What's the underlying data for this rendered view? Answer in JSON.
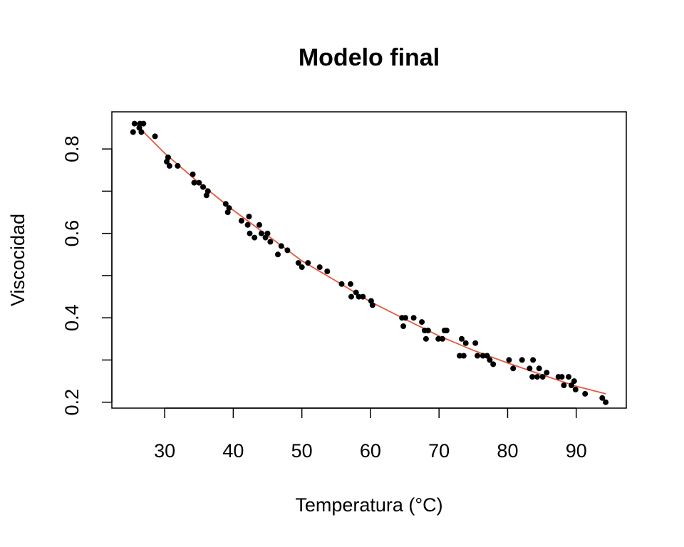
{
  "chart_data": {
    "type": "scatter",
    "title": "Modelo final",
    "xlabel": "Temperatura (°C)",
    "ylabel": "Viscocidad",
    "xlim": [
      22.3,
      97.3
    ],
    "ylim": [
      0.186,
      0.888
    ],
    "xticks": [
      30,
      40,
      50,
      60,
      70,
      80,
      90
    ],
    "yticks": [
      0.2,
      0.4,
      0.6,
      0.8
    ],
    "xtick_labels": [
      "30",
      "40",
      "50",
      "60",
      "70",
      "80",
      "90"
    ],
    "ytick_labels": [
      "0.2",
      "0.4",
      "0.6",
      "0.8"
    ],
    "grid": false,
    "legend": "none",
    "colors": {
      "points": "#000000",
      "fit_line": "#e8573c"
    },
    "points": [
      {
        "x": 25.4,
        "y": 0.84
      },
      {
        "x": 25.6,
        "y": 0.86
      },
      {
        "x": 26.3,
        "y": 0.85
      },
      {
        "x": 26.4,
        "y": 0.86
      },
      {
        "x": 26.6,
        "y": 0.84
      },
      {
        "x": 26.9,
        "y": 0.86
      },
      {
        "x": 28.6,
        "y": 0.83
      },
      {
        "x": 30.3,
        "y": 0.77
      },
      {
        "x": 30.5,
        "y": 0.78
      },
      {
        "x": 30.7,
        "y": 0.76
      },
      {
        "x": 31.9,
        "y": 0.76
      },
      {
        "x": 34.1,
        "y": 0.74
      },
      {
        "x": 34.3,
        "y": 0.72
      },
      {
        "x": 35.0,
        "y": 0.72
      },
      {
        "x": 35.6,
        "y": 0.71
      },
      {
        "x": 36.1,
        "y": 0.69
      },
      {
        "x": 36.3,
        "y": 0.7
      },
      {
        "x": 38.9,
        "y": 0.67
      },
      {
        "x": 39.2,
        "y": 0.65
      },
      {
        "x": 39.4,
        "y": 0.66
      },
      {
        "x": 41.2,
        "y": 0.63
      },
      {
        "x": 42.1,
        "y": 0.62
      },
      {
        "x": 42.3,
        "y": 0.64
      },
      {
        "x": 42.4,
        "y": 0.6
      },
      {
        "x": 43.1,
        "y": 0.59
      },
      {
        "x": 43.8,
        "y": 0.62
      },
      {
        "x": 44.1,
        "y": 0.6
      },
      {
        "x": 44.7,
        "y": 0.59
      },
      {
        "x": 45.0,
        "y": 0.6
      },
      {
        "x": 45.4,
        "y": 0.58
      },
      {
        "x": 46.5,
        "y": 0.55
      },
      {
        "x": 47.0,
        "y": 0.57
      },
      {
        "x": 47.9,
        "y": 0.56
      },
      {
        "x": 49.5,
        "y": 0.53
      },
      {
        "x": 50.0,
        "y": 0.52
      },
      {
        "x": 50.9,
        "y": 0.53
      },
      {
        "x": 52.6,
        "y": 0.52
      },
      {
        "x": 53.7,
        "y": 0.51
      },
      {
        "x": 55.8,
        "y": 0.48
      },
      {
        "x": 57.1,
        "y": 0.48
      },
      {
        "x": 57.2,
        "y": 0.45
      },
      {
        "x": 57.9,
        "y": 0.46
      },
      {
        "x": 58.3,
        "y": 0.45
      },
      {
        "x": 58.9,
        "y": 0.45
      },
      {
        "x": 60.1,
        "y": 0.44
      },
      {
        "x": 60.3,
        "y": 0.43
      },
      {
        "x": 64.6,
        "y": 0.4
      },
      {
        "x": 64.8,
        "y": 0.38
      },
      {
        "x": 65.1,
        "y": 0.4
      },
      {
        "x": 66.3,
        "y": 0.4
      },
      {
        "x": 67.5,
        "y": 0.39
      },
      {
        "x": 67.9,
        "y": 0.37
      },
      {
        "x": 68.1,
        "y": 0.35
      },
      {
        "x": 68.4,
        "y": 0.37
      },
      {
        "x": 69.9,
        "y": 0.35
      },
      {
        "x": 70.5,
        "y": 0.35
      },
      {
        "x": 70.8,
        "y": 0.37
      },
      {
        "x": 71.1,
        "y": 0.37
      },
      {
        "x": 73.0,
        "y": 0.31
      },
      {
        "x": 73.3,
        "y": 0.35
      },
      {
        "x": 73.6,
        "y": 0.31
      },
      {
        "x": 73.9,
        "y": 0.34
      },
      {
        "x": 75.3,
        "y": 0.34
      },
      {
        "x": 75.6,
        "y": 0.31
      },
      {
        "x": 76.4,
        "y": 0.31
      },
      {
        "x": 77.0,
        "y": 0.31
      },
      {
        "x": 77.4,
        "y": 0.3
      },
      {
        "x": 77.9,
        "y": 0.29
      },
      {
        "x": 80.2,
        "y": 0.3
      },
      {
        "x": 80.8,
        "y": 0.28
      },
      {
        "x": 82.1,
        "y": 0.3
      },
      {
        "x": 83.2,
        "y": 0.28
      },
      {
        "x": 83.6,
        "y": 0.26
      },
      {
        "x": 83.7,
        "y": 0.3
      },
      {
        "x": 84.3,
        "y": 0.26
      },
      {
        "x": 84.6,
        "y": 0.28
      },
      {
        "x": 85.1,
        "y": 0.26
      },
      {
        "x": 85.7,
        "y": 0.27
      },
      {
        "x": 87.4,
        "y": 0.26
      },
      {
        "x": 87.9,
        "y": 0.26
      },
      {
        "x": 88.2,
        "y": 0.24
      },
      {
        "x": 88.9,
        "y": 0.26
      },
      {
        "x": 89.3,
        "y": 0.24
      },
      {
        "x": 89.7,
        "y": 0.25
      },
      {
        "x": 89.9,
        "y": 0.23
      },
      {
        "x": 91.3,
        "y": 0.22
      },
      {
        "x": 93.8,
        "y": 0.21
      },
      {
        "x": 94.3,
        "y": 0.2
      }
    ],
    "fit_line": [
      {
        "x": 25.4,
        "y": 0.865
      },
      {
        "x": 30,
        "y": 0.79
      },
      {
        "x": 35,
        "y": 0.72
      },
      {
        "x": 40,
        "y": 0.655
      },
      {
        "x": 45,
        "y": 0.595
      },
      {
        "x": 50,
        "y": 0.535
      },
      {
        "x": 55,
        "y": 0.487
      },
      {
        "x": 60,
        "y": 0.438
      },
      {
        "x": 65,
        "y": 0.397
      },
      {
        "x": 70,
        "y": 0.357
      },
      {
        "x": 75,
        "y": 0.323
      },
      {
        "x": 80,
        "y": 0.293
      },
      {
        "x": 85,
        "y": 0.265
      },
      {
        "x": 90,
        "y": 0.238
      },
      {
        "x": 94.3,
        "y": 0.22
      }
    ]
  }
}
